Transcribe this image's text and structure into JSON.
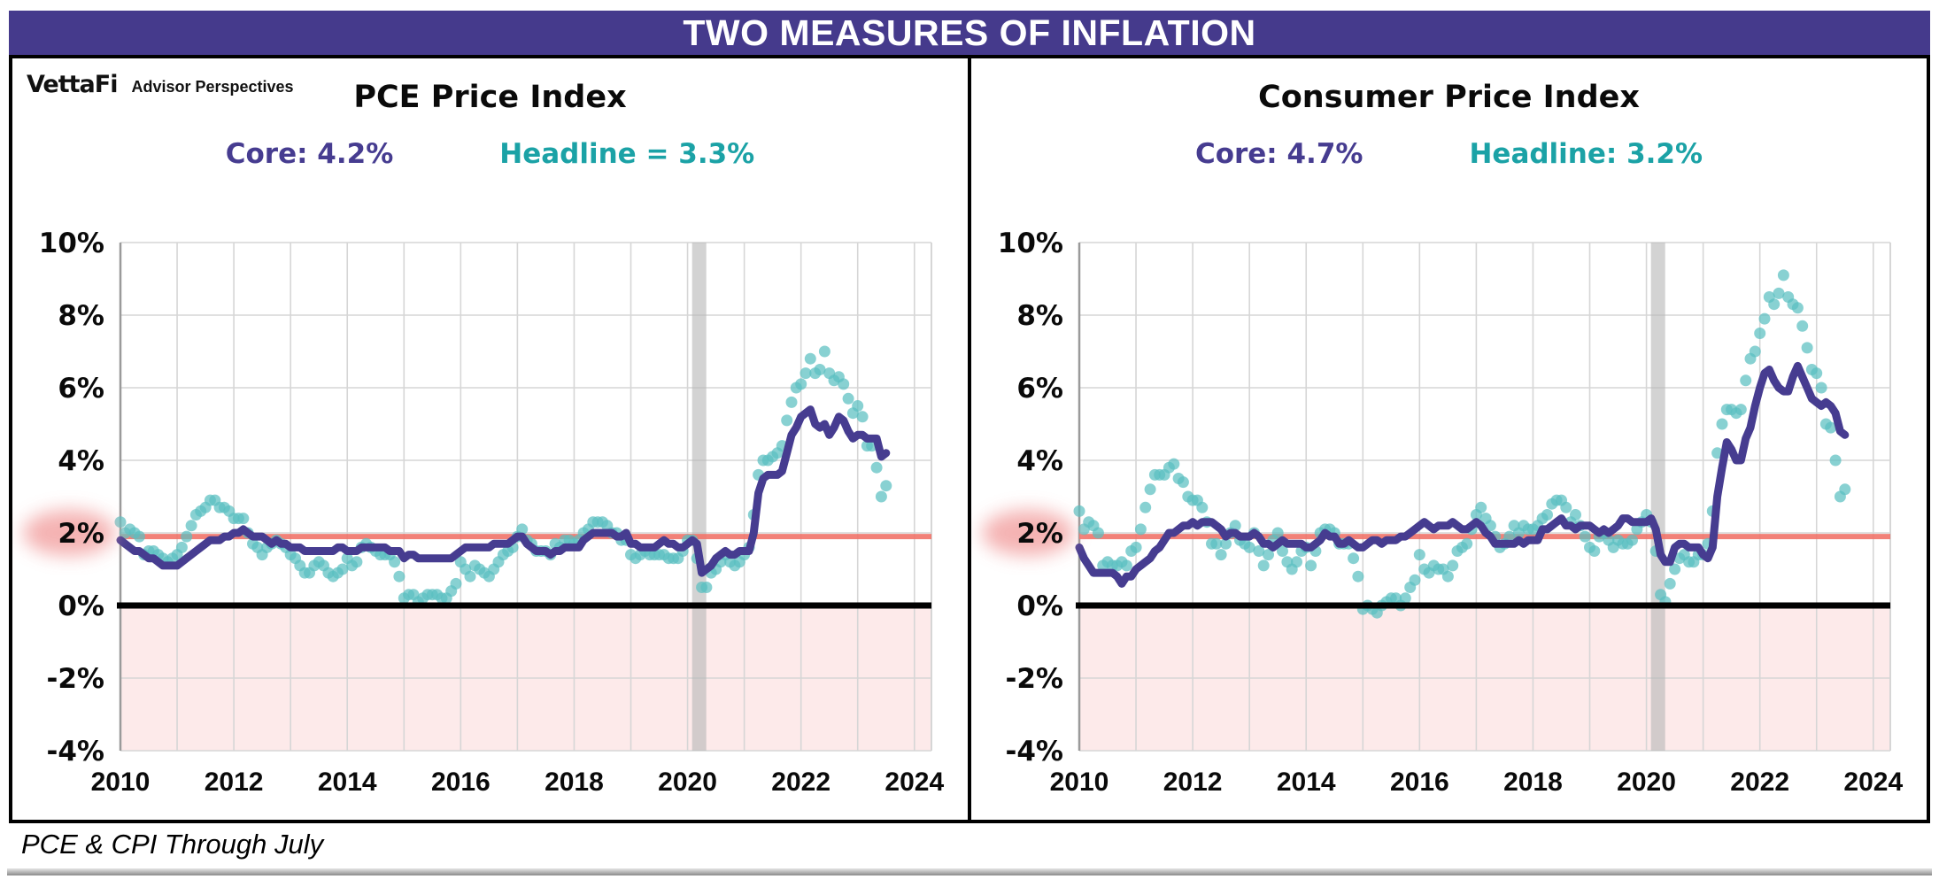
{
  "header": {
    "title": "TWO MEASURES OF INFLATION",
    "bg_color": "#453a8c",
    "text_color": "#ffffff"
  },
  "branding": {
    "name": "VettaFi",
    "tagline": "Advisor Perspectives"
  },
  "footer": {
    "note": "PCE & CPI Through July"
  },
  "colors": {
    "core_purple": "#463c90",
    "headline_teal_text": "#1ba2a6",
    "dot_teal": "#5abfc1",
    "target_red": "#f1746a",
    "below_zero_pink": "#fdeaea",
    "recession_gray": "#b5b5b5",
    "grid_gray": "#d6d6d6",
    "zero_line_black": "#000000",
    "label_glow_pink": "#f3a6a6"
  },
  "chart_data": [
    {
      "type": "line+scatter",
      "title": "PCE Price Index",
      "legend": {
        "core_label": "Core: 4.2%",
        "headline_label": "Headline = 3.3%"
      },
      "core_latest_pct": 4.2,
      "headline_latest_pct": 3.3,
      "frequency": "monthly",
      "start_month": "2010-01",
      "end_month": "2023-07",
      "x_range": [
        2010,
        2024.3
      ],
      "y_range": [
        -4,
        10
      ],
      "x_ticks": [
        2010,
        2012,
        2014,
        2016,
        2018,
        2020,
        2022,
        2024
      ],
      "y_ticks": [
        "10%",
        "8%",
        "6%",
        "4%",
        "2%",
        "0%",
        "-2%",
        "-4%"
      ],
      "grid": {
        "vertical": "every 1 year",
        "horizontal": "every 2%"
      },
      "target_line_pct": 2,
      "zero_line_pct": 0,
      "below_zero_shaded": true,
      "recession_band_years": [
        2020.08,
        2020.33
      ],
      "series": [
        {
          "name": "Core PCE (YoY %)",
          "style": "line",
          "color": "#463c90",
          "values": [
            1.8,
            1.7,
            1.6,
            1.5,
            1.5,
            1.4,
            1.3,
            1.3,
            1.2,
            1.1,
            1.1,
            1.1,
            1.1,
            1.2,
            1.3,
            1.4,
            1.5,
            1.6,
            1.7,
            1.8,
            1.8,
            1.8,
            1.9,
            1.9,
            2.0,
            2.0,
            2.1,
            2.0,
            1.9,
            1.9,
            1.9,
            1.8,
            1.7,
            1.8,
            1.7,
            1.7,
            1.6,
            1.6,
            1.6,
            1.5,
            1.5,
            1.5,
            1.5,
            1.5,
            1.5,
            1.5,
            1.6,
            1.6,
            1.5,
            1.5,
            1.5,
            1.6,
            1.6,
            1.6,
            1.6,
            1.6,
            1.6,
            1.5,
            1.5,
            1.5,
            1.3,
            1.4,
            1.4,
            1.3,
            1.3,
            1.3,
            1.3,
            1.3,
            1.3,
            1.3,
            1.3,
            1.4,
            1.5,
            1.6,
            1.6,
            1.6,
            1.6,
            1.6,
            1.6,
            1.7,
            1.7,
            1.7,
            1.7,
            1.8,
            1.9,
            1.9,
            1.7,
            1.6,
            1.5,
            1.5,
            1.5,
            1.4,
            1.5,
            1.5,
            1.6,
            1.6,
            1.6,
            1.6,
            1.8,
            1.9,
            2.0,
            2.0,
            2.0,
            2.0,
            2.0,
            1.9,
            1.9,
            2.0,
            1.7,
            1.7,
            1.6,
            1.6,
            1.6,
            1.6,
            1.7,
            1.8,
            1.7,
            1.7,
            1.6,
            1.6,
            1.7,
            1.8,
            1.7,
            0.9,
            1.0,
            1.1,
            1.3,
            1.4,
            1.5,
            1.4,
            1.4,
            1.5,
            1.5,
            1.5,
            2.0,
            3.1,
            3.5,
            3.6,
            3.6,
            3.6,
            3.7,
            4.2,
            4.7,
            4.9,
            5.2,
            5.3,
            5.4,
            5.0,
            4.9,
            5.0,
            4.7,
            4.9,
            5.2,
            5.1,
            4.8,
            4.6,
            4.7,
            4.7,
            4.6,
            4.6,
            4.6,
            4.1,
            4.2
          ]
        },
        {
          "name": "Headline PCE (YoY %)",
          "style": "scatter",
          "color": "#5abfc1",
          "values": [
            2.3,
            2.0,
            2.1,
            2.0,
            1.9,
            1.4,
            1.5,
            1.5,
            1.4,
            1.3,
            1.2,
            1.3,
            1.4,
            1.6,
            1.9,
            2.2,
            2.5,
            2.6,
            2.7,
            2.9,
            2.9,
            2.7,
            2.7,
            2.6,
            2.4,
            2.4,
            2.4,
            2.0,
            1.7,
            1.6,
            1.4,
            1.6,
            1.7,
            1.8,
            1.7,
            1.6,
            1.4,
            1.3,
            1.1,
            0.9,
            0.9,
            1.1,
            1.2,
            1.1,
            0.9,
            0.8,
            0.9,
            1.0,
            1.3,
            1.1,
            1.2,
            1.6,
            1.7,
            1.6,
            1.5,
            1.4,
            1.4,
            1.4,
            1.2,
            0.8,
            0.2,
            0.3,
            0.3,
            0.1,
            0.2,
            0.3,
            0.3,
            0.3,
            0.2,
            0.2,
            0.4,
            0.6,
            1.2,
            1.0,
            0.8,
            1.1,
            1.0,
            0.9,
            0.8,
            1.0,
            1.2,
            1.4,
            1.5,
            1.6,
            1.9,
            2.1,
            1.8,
            1.7,
            1.5,
            1.5,
            1.5,
            1.4,
            1.7,
            1.6,
            1.8,
            1.8,
            1.7,
            1.8,
            2.0,
            2.1,
            2.3,
            2.3,
            2.3,
            2.2,
            2.0,
            2.0,
            1.8,
            1.8,
            1.4,
            1.3,
            1.4,
            1.5,
            1.4,
            1.4,
            1.4,
            1.4,
            1.3,
            1.3,
            1.3,
            1.5,
            1.8,
            1.8,
            1.3,
            0.5,
            0.5,
            0.9,
            1.0,
            1.2,
            1.4,
            1.2,
            1.1,
            1.2,
            1.4,
            1.6,
            2.5,
            3.6,
            4.0,
            4.0,
            4.1,
            4.2,
            4.4,
            5.1,
            5.6,
            6.0,
            6.1,
            6.4,
            6.8,
            6.4,
            6.5,
            7.0,
            6.4,
            6.2,
            6.3,
            6.1,
            5.7,
            5.3,
            5.5,
            5.2,
            4.4,
            4.4,
            3.8,
            3.0,
            3.3
          ]
        }
      ]
    },
    {
      "type": "line+scatter",
      "title": "Consumer Price Index",
      "legend": {
        "core_label": "Core: 4.7%",
        "headline_label": "Headline: 3.2%"
      },
      "core_latest_pct": 4.7,
      "headline_latest_pct": 3.2,
      "frequency": "monthly",
      "start_month": "2010-01",
      "end_month": "2023-07",
      "x_range": [
        2010,
        2024.3
      ],
      "y_range": [
        -4,
        10
      ],
      "x_ticks": [
        2010,
        2012,
        2014,
        2016,
        2018,
        2020,
        2022,
        2024
      ],
      "y_ticks": [
        "10%",
        "8%",
        "6%",
        "4%",
        "2%",
        "0%",
        "-2%",
        "-4%"
      ],
      "grid": {
        "vertical": "every 1 year",
        "horizontal": "every 2%"
      },
      "target_line_pct": 2,
      "zero_line_pct": 0,
      "below_zero_shaded": true,
      "recession_band_years": [
        2020.08,
        2020.33
      ],
      "series": [
        {
          "name": "Core CPI (YoY %)",
          "style": "line",
          "color": "#463c90",
          "values": [
            1.6,
            1.3,
            1.1,
            0.9,
            0.9,
            0.9,
            0.9,
            0.9,
            0.8,
            0.6,
            0.8,
            0.8,
            1.0,
            1.1,
            1.2,
            1.3,
            1.5,
            1.6,
            1.8,
            2.0,
            2.0,
            2.1,
            2.2,
            2.2,
            2.3,
            2.2,
            2.3,
            2.3,
            2.3,
            2.2,
            2.1,
            1.9,
            2.0,
            2.0,
            1.9,
            1.9,
            1.9,
            2.0,
            1.9,
            1.7,
            1.7,
            1.6,
            1.7,
            1.8,
            1.7,
            1.7,
            1.7,
            1.7,
            1.6,
            1.6,
            1.7,
            1.8,
            2.0,
            1.9,
            1.9,
            1.7,
            1.7,
            1.8,
            1.7,
            1.6,
            1.6,
            1.7,
            1.8,
            1.8,
            1.7,
            1.8,
            1.8,
            1.8,
            1.9,
            1.9,
            2.0,
            2.1,
            2.2,
            2.3,
            2.2,
            2.1,
            2.2,
            2.2,
            2.2,
            2.3,
            2.2,
            2.1,
            2.1,
            2.2,
            2.3,
            2.2,
            2.0,
            1.9,
            1.7,
            1.7,
            1.7,
            1.7,
            1.7,
            1.8,
            1.7,
            1.8,
            1.8,
            1.8,
            2.1,
            2.1,
            2.2,
            2.3,
            2.4,
            2.2,
            2.2,
            2.1,
            2.2,
            2.2,
            2.2,
            2.1,
            2.0,
            2.1,
            2.0,
            2.1,
            2.2,
            2.4,
            2.4,
            2.3,
            2.3,
            2.3,
            2.3,
            2.4,
            2.1,
            1.4,
            1.2,
            1.2,
            1.6,
            1.7,
            1.7,
            1.6,
            1.6,
            1.6,
            1.4,
            1.3,
            1.6,
            3.0,
            3.8,
            4.5,
            4.3,
            4.0,
            4.0,
            4.6,
            4.9,
            5.5,
            6.0,
            6.4,
            6.5,
            6.2,
            6.0,
            5.9,
            5.9,
            6.3,
            6.6,
            6.3,
            6.0,
            5.7,
            5.6,
            5.5,
            5.6,
            5.5,
            5.3,
            4.8,
            4.7
          ]
        },
        {
          "name": "Headline CPI (YoY %)",
          "style": "scatter",
          "color": "#5abfc1",
          "values": [
            2.6,
            2.1,
            2.3,
            2.2,
            2.0,
            1.1,
            1.2,
            1.1,
            1.1,
            1.2,
            1.1,
            1.5,
            1.6,
            2.1,
            2.7,
            3.2,
            3.6,
            3.6,
            3.6,
            3.8,
            3.9,
            3.5,
            3.4,
            3.0,
            2.9,
            2.9,
            2.7,
            2.3,
            1.7,
            1.7,
            1.4,
            1.7,
            2.0,
            2.2,
            1.8,
            1.7,
            1.6,
            2.0,
            1.5,
            1.1,
            1.4,
            1.8,
            2.0,
            1.5,
            1.2,
            1.0,
            1.2,
            1.5,
            1.6,
            1.1,
            1.5,
            2.0,
            2.1,
            2.1,
            2.0,
            1.7,
            1.7,
            1.7,
            1.3,
            0.8,
            -0.1,
            0.0,
            -0.1,
            -0.2,
            0.0,
            0.1,
            0.2,
            0.2,
            0.0,
            0.2,
            0.5,
            0.7,
            1.4,
            1.0,
            0.9,
            1.1,
            1.0,
            1.0,
            0.8,
            1.1,
            1.5,
            1.6,
            1.7,
            2.1,
            2.5,
            2.7,
            2.4,
            2.2,
            1.9,
            1.6,
            1.7,
            1.9,
            2.2,
            2.0,
            2.2,
            2.1,
            2.1,
            2.2,
            2.4,
            2.5,
            2.8,
            2.9,
            2.9,
            2.7,
            2.3,
            2.5,
            2.2,
            1.9,
            1.6,
            1.5,
            1.9,
            2.0,
            1.8,
            1.6,
            1.8,
            1.7,
            1.7,
            1.8,
            2.1,
            2.3,
            2.5,
            2.3,
            1.5,
            0.3,
            0.1,
            0.6,
            1.0,
            1.3,
            1.4,
            1.2,
            1.2,
            1.4,
            1.4,
            1.7,
            2.6,
            4.2,
            5.0,
            5.4,
            5.4,
            5.3,
            5.4,
            6.2,
            6.8,
            7.0,
            7.5,
            7.9,
            8.5,
            8.3,
            8.6,
            9.1,
            8.5,
            8.3,
            8.2,
            7.7,
            7.1,
            6.5,
            6.4,
            6.0,
            5.0,
            4.9,
            4.0,
            3.0,
            3.2
          ]
        }
      ]
    }
  ]
}
